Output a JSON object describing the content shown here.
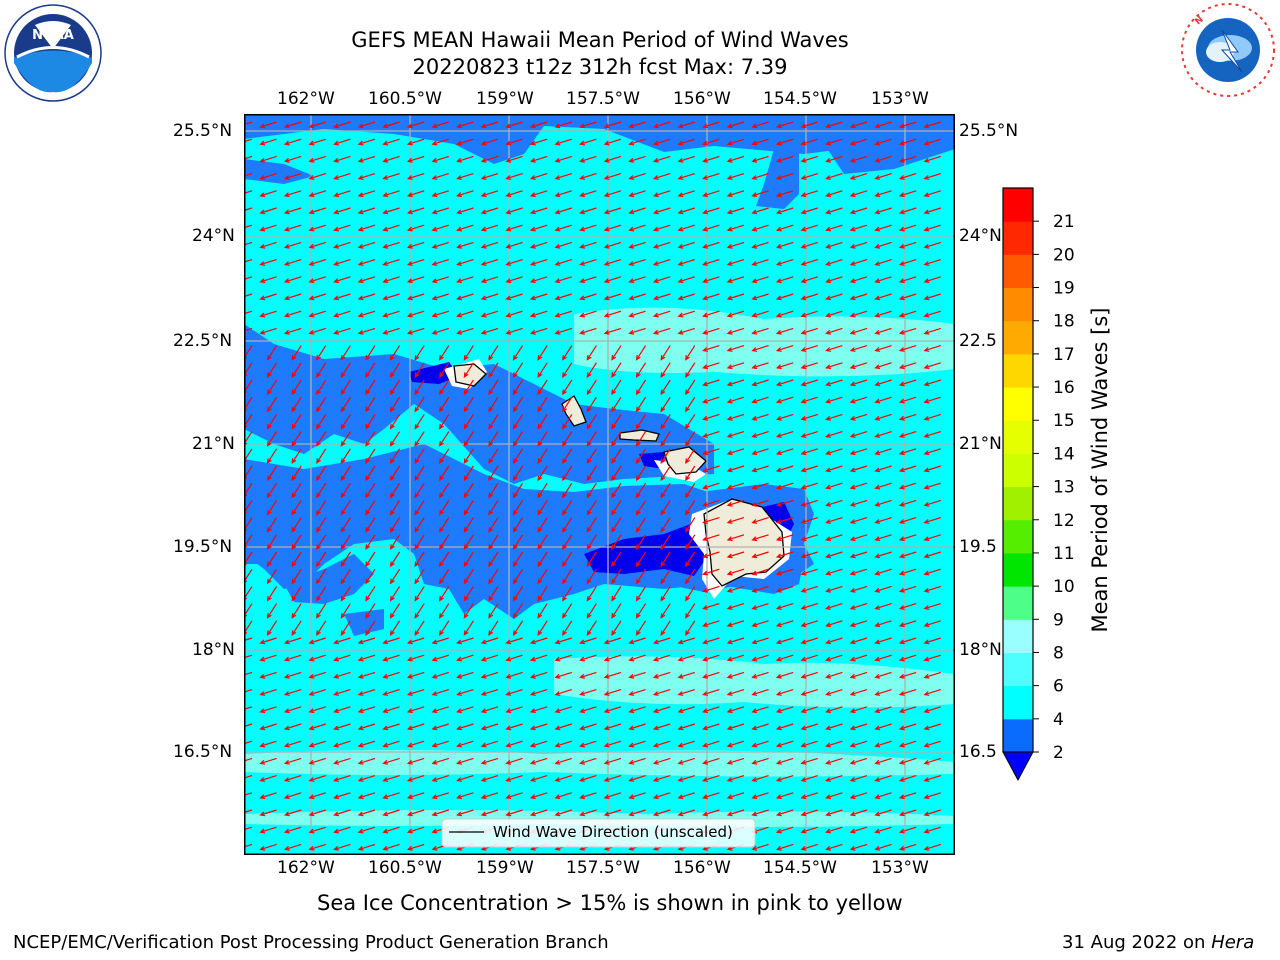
{
  "title": {
    "line1": "GEFS MEAN Hawaii Mean Period of Wind Waves",
    "line2": "20220823 t12z 312h fcst   Max: 7.39"
  },
  "axes": {
    "lon_labels": [
      "162°W",
      "160.5°W",
      "159°W",
      "157.5°W",
      "156°W",
      "154.5°W",
      "153°W"
    ],
    "lat_labels": [
      "25.5°N",
      "24°N",
      "22.5°N",
      "21°N",
      "19.5°N",
      "18°N",
      "16.5°N"
    ],
    "lat_labels_right": [
      "25.5°N",
      "24°N",
      "22.5",
      "21°N",
      "19.5",
      "18°N",
      "16.5"
    ]
  },
  "legend": {
    "label": "Wind Wave Direction (unscaled)"
  },
  "colorbar": {
    "label": "Mean Period of Wind Waves [s]",
    "levels": [
      "2",
      "4",
      "6",
      "8",
      "9",
      "10",
      "11",
      "12",
      "13",
      "14",
      "15",
      "16",
      "17",
      "18",
      "19",
      "20",
      "21"
    ],
    "colors": [
      "#0a6cff",
      "#00ffff",
      "#4dffff",
      "#99ffff",
      "#4dff88",
      "#00e600",
      "#55ee00",
      "#a0f000",
      "#ccff00",
      "#e6ff00",
      "#ffff00",
      "#ffd700",
      "#ffaa00",
      "#ff8c00",
      "#ff5a00",
      "#ff2800",
      "#ff0000"
    ],
    "under_color": "#0000ff"
  },
  "colors": {
    "sea_cyan": "#00ffff",
    "mid_blue": "#1e7bff",
    "deep_blue": "#0000ee",
    "pale_cyan": "#7ffff0",
    "land": "#efecd9",
    "arrow": "#ff0000"
  },
  "note": "Sea Ice Concentration > 15% is shown in pink to yellow",
  "footer": {
    "left": "NCEP/EMC/Verification Post Processing Product Generation Branch",
    "right_date": "31 Aug 2022 on",
    "right_host": "Hera"
  },
  "logos": {
    "noaa": "NOAA",
    "noaa_ring": "NATIONAL OCEANIC AND ATMOSPHERIC ADMINISTRATION · U.S. DEPARTMENT OF COMMERCE",
    "nws_ring": "NATIONAL WEATHER SERVICE"
  }
}
